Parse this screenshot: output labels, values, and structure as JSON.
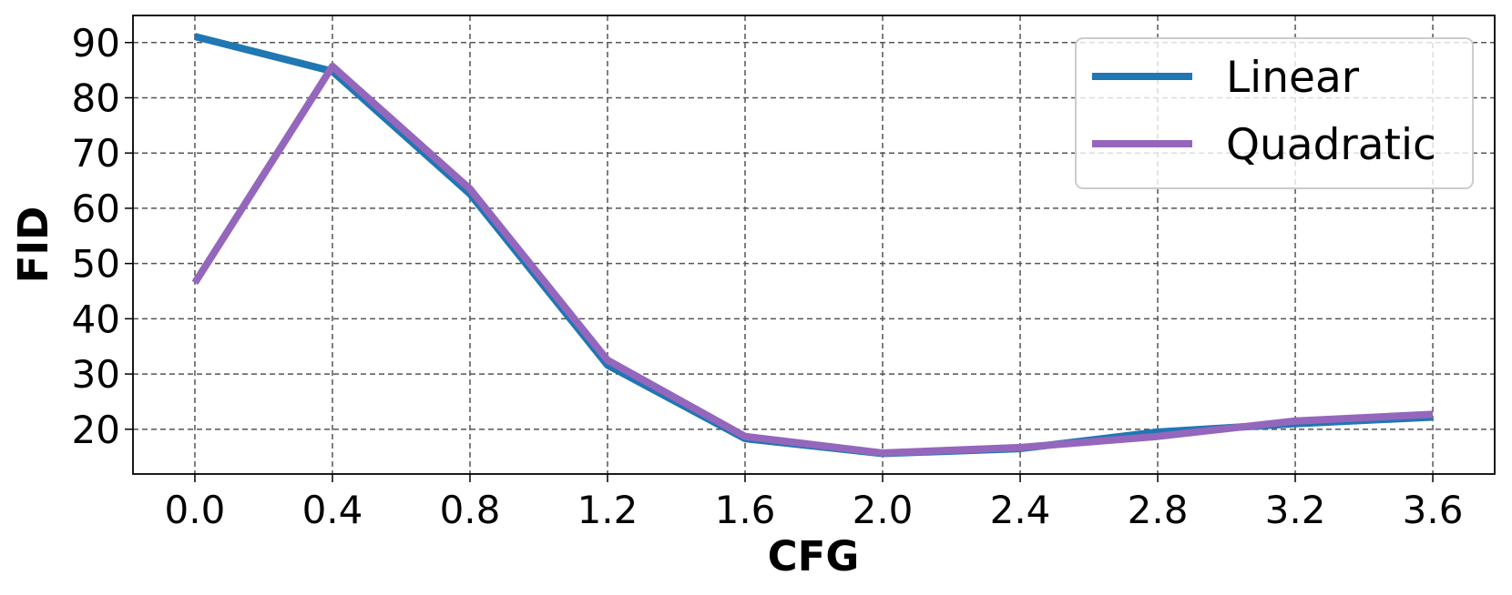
{
  "chart_data": {
    "type": "line",
    "x_label": "CFG",
    "y_label": "FID",
    "x": [
      0.0,
      0.4,
      0.8,
      1.2,
      1.6,
      2.0,
      2.4,
      2.8,
      3.2,
      3.6
    ],
    "series": [
      {
        "name": "Linear",
        "color": "#1f77b4",
        "values": [
          91.1,
          84.8,
          62.6,
          31.6,
          18.3,
          15.6,
          16.5,
          19.5,
          21.0,
          22.2
        ]
      },
      {
        "name": "Quadratic",
        "color": "#9467bd",
        "values": [
          46.5,
          85.7,
          63.5,
          32.5,
          18.7,
          15.7,
          16.7,
          18.7,
          21.5,
          22.7
        ]
      }
    ],
    "xlim": [
      -0.18,
      3.78
    ],
    "ylim": [
      11.9,
      94.9
    ],
    "xticks": [
      {
        "value": 0.0,
        "label": "0.0"
      },
      0.4,
      0.8,
      1.2,
      1.6,
      {
        "value": 2.0,
        "label": "2.0"
      },
      2.4,
      2.8,
      3.2,
      3.6
    ],
    "yticks": [
      20,
      30,
      40,
      50,
      60,
      70,
      80,
      90
    ],
    "grid": true,
    "legend": "upper right"
  }
}
